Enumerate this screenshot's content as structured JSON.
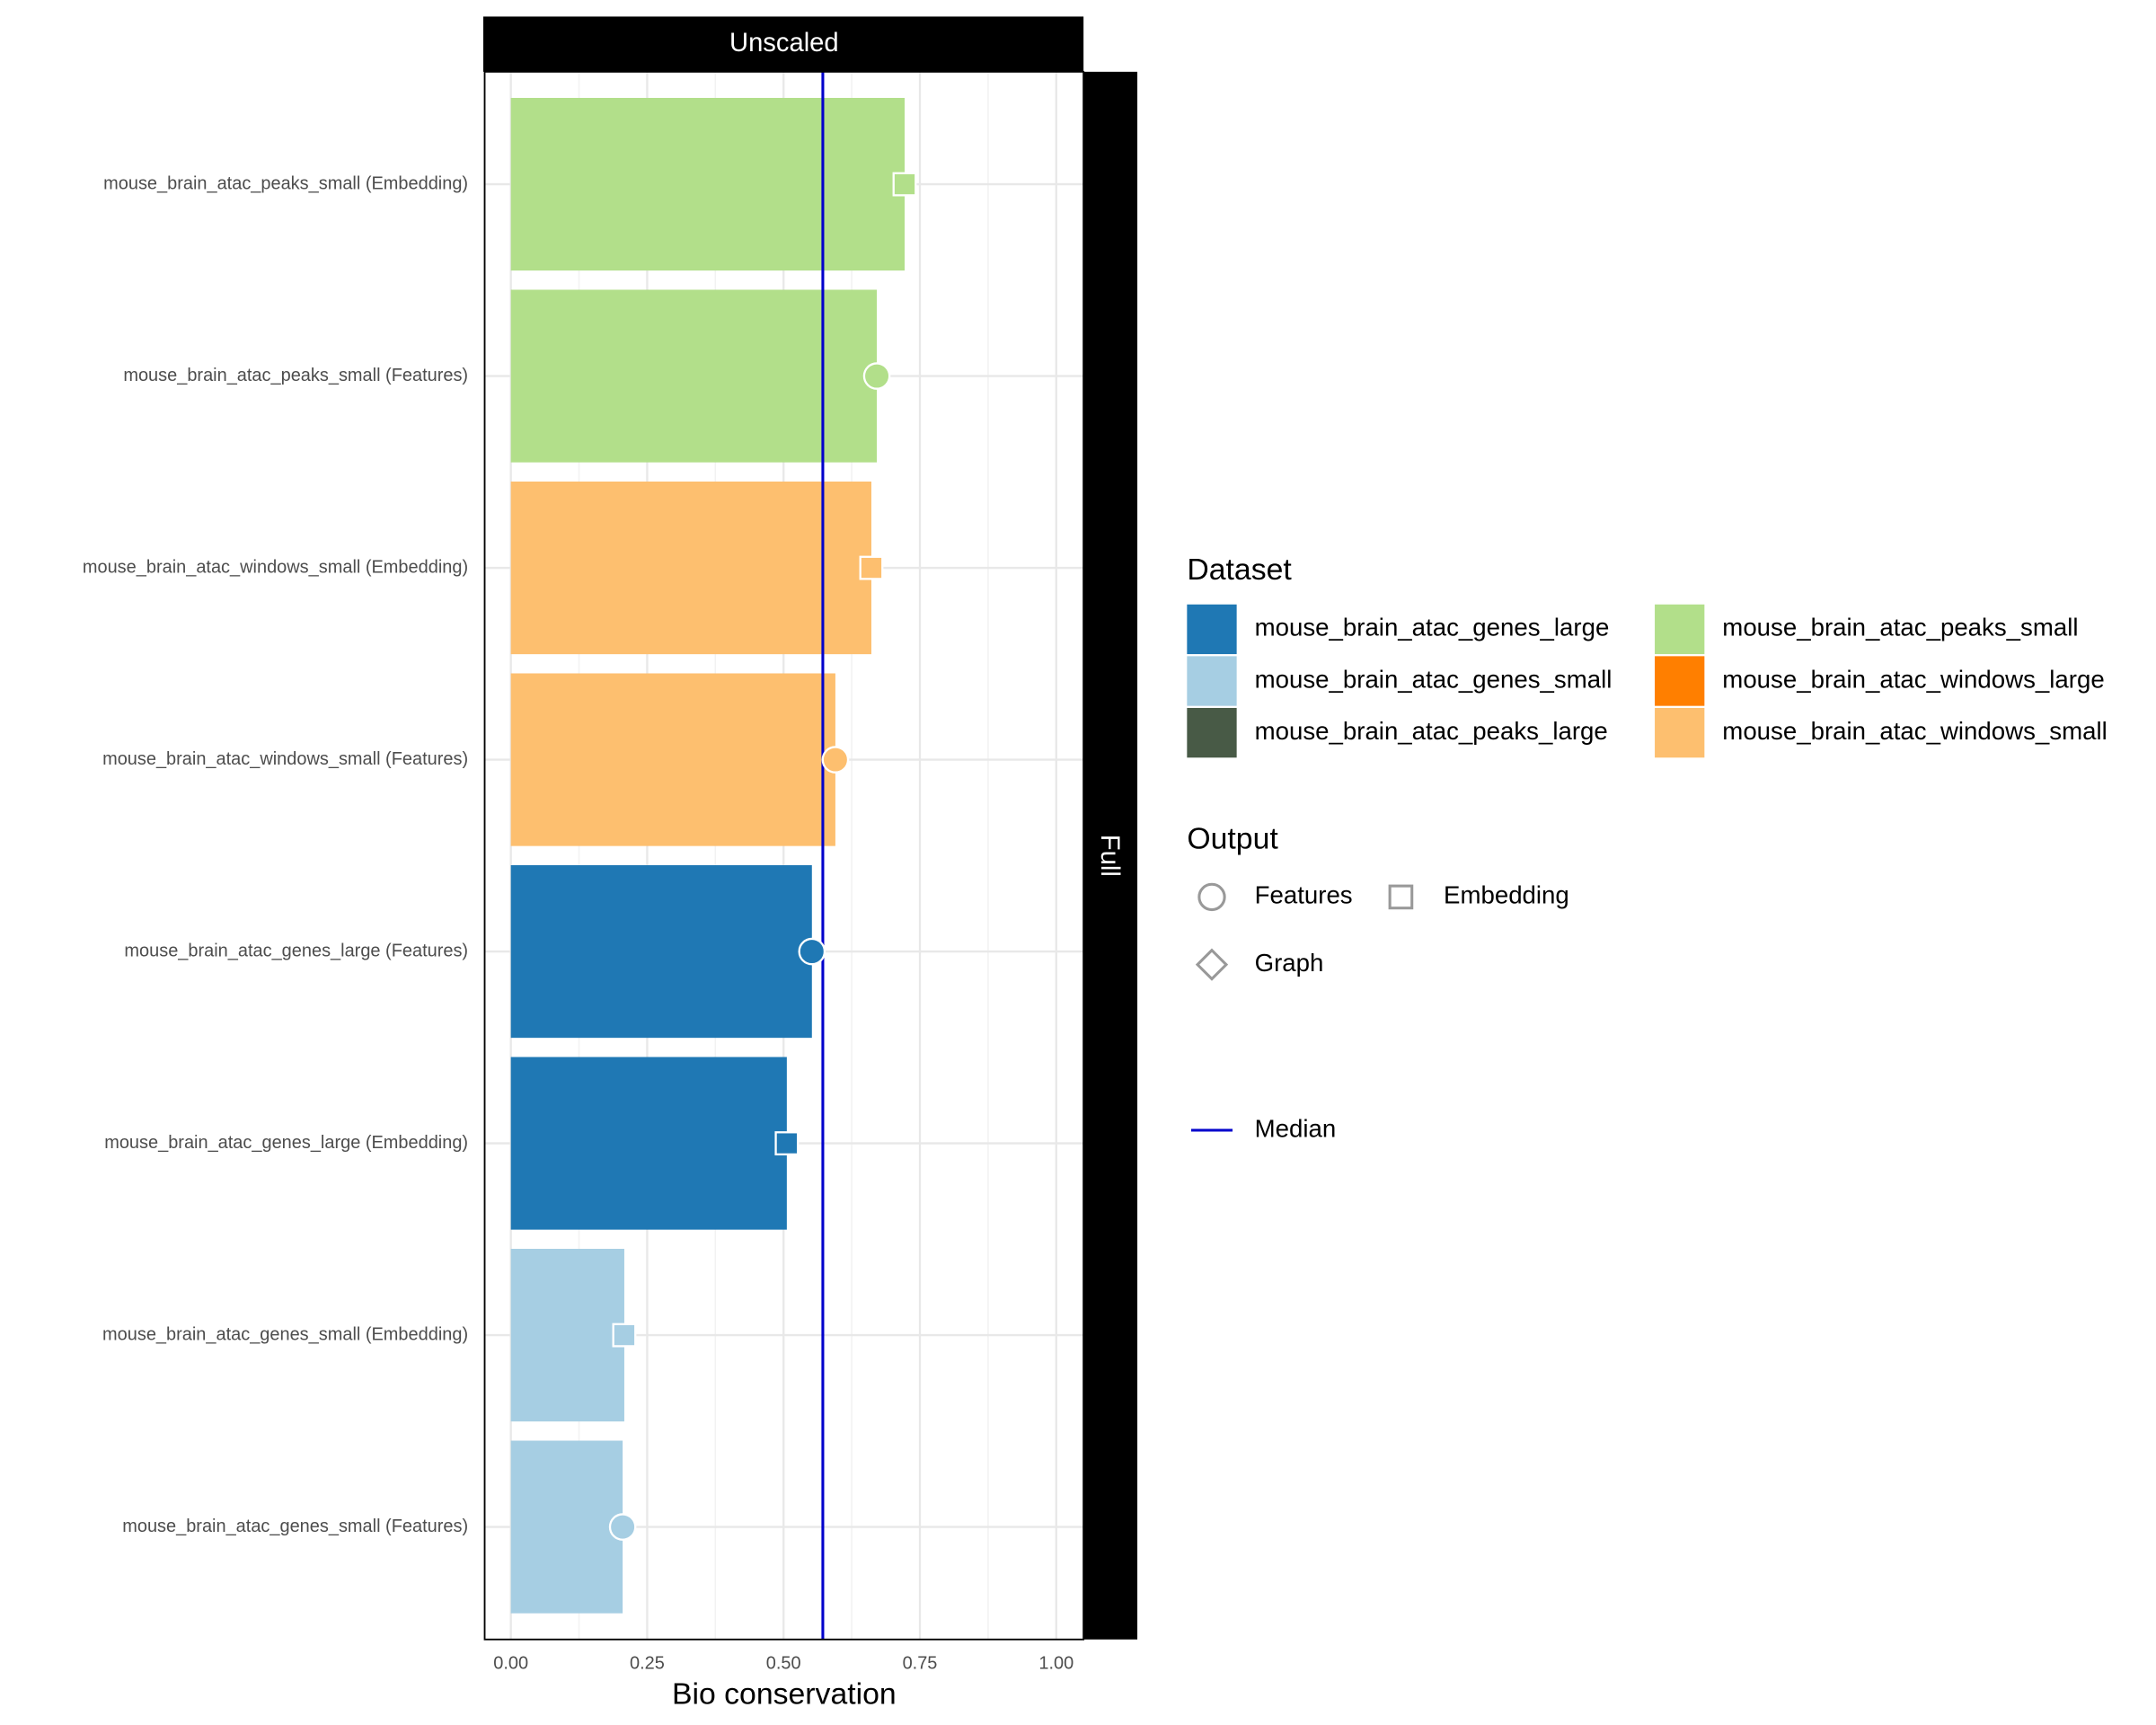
{
  "chart_data": {
    "type": "bar",
    "facet_top": "Unscaled",
    "facet_right": "Full",
    "x_label": "Bio conservation",
    "categories": [
      "mouse_brain_atac_peaks_small (Embedding)",
      "mouse_brain_atac_peaks_small (Features)",
      "mouse_brain_atac_windows_small (Embedding)",
      "mouse_brain_atac_windows_small (Features)",
      "mouse_brain_atac_genes_large (Features)",
      "mouse_brain_atac_genes_large (Embedding)",
      "mouse_brain_atac_genes_small (Embedding)",
      "mouse_brain_atac_genes_small (Features)"
    ],
    "values": [
      0.722,
      0.671,
      0.661,
      0.595,
      0.552,
      0.506,
      0.208,
      0.205
    ],
    "dataset": [
      "mouse_brain_atac_peaks_small",
      "mouse_brain_atac_peaks_small",
      "mouse_brain_atac_windows_small",
      "mouse_brain_atac_windows_small",
      "mouse_brain_atac_genes_large",
      "mouse_brain_atac_genes_large",
      "mouse_brain_atac_genes_small",
      "mouse_brain_atac_genes_small"
    ],
    "output": [
      "Embedding",
      "Features",
      "Embedding",
      "Features",
      "Features",
      "Embedding",
      "Embedding",
      "Features"
    ],
    "xlim": [
      -0.048,
      1.05
    ],
    "xticks": [
      {
        "value": 0,
        "label": "0.00"
      },
      {
        "value": 0.25,
        "label": "0.25"
      },
      {
        "value": 0.5,
        "label": "0.50"
      },
      {
        "value": 0.75,
        "label": "0.75"
      },
      {
        "value": 1,
        "label": "1.00"
      }
    ],
    "grid": true,
    "median": {
      "name": "Median",
      "value": 0.572,
      "color": "#0000cc"
    },
    "legend_dataset": {
      "title": "Dataset",
      "items": [
        {
          "name": "mouse_brain_atac_genes_large",
          "color": "#1f78b4"
        },
        {
          "name": "mouse_brain_atac_genes_small",
          "color": "#a6cee3"
        },
        {
          "name": "mouse_brain_atac_peaks_large",
          "color": "#485a46"
        },
        {
          "name": "mouse_brain_atac_peaks_small",
          "color": "#b2df8a"
        },
        {
          "name": "mouse_brain_atac_windows_large",
          "color": "#ff7f00"
        },
        {
          "name": "mouse_brain_atac_windows_small",
          "color": "#fdbf6f"
        }
      ]
    },
    "legend_output": {
      "title": "Output",
      "items": [
        {
          "name": "Features",
          "shape": "circle"
        },
        {
          "name": "Embedding",
          "shape": "square"
        },
        {
          "name": "Graph",
          "shape": "diamond"
        }
      ]
    }
  }
}
